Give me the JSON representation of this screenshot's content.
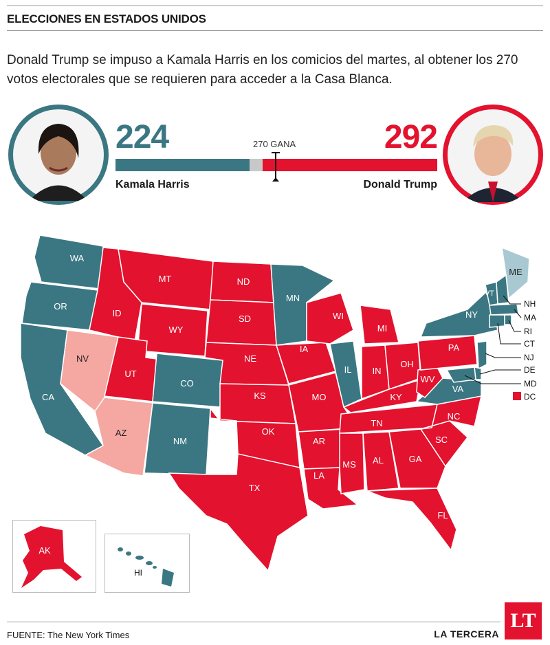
{
  "header": {
    "kicker": "ELECCIONES EN ESTADOS UNIDOS",
    "lede": "Donald Trump se impuso a Kamala Harris en los comicios del martes, al obtener los 270 votos electorales que se requieren para acceder a la Casa Blanca."
  },
  "scoreboard": {
    "harris_votes": "224",
    "trump_votes": "292",
    "harris_name": "Kamala Harris",
    "trump_name": "Donald Trump",
    "threshold_label": "270 GANA",
    "total": 538,
    "harris_value": 224,
    "trump_value": 292
  },
  "colors": {
    "democrat": "#3b7782",
    "republican": "#e3122e",
    "democrat_light": "#a9c9d2",
    "republican_light": "#f5a7a2",
    "undecided": "#c8c8c8"
  },
  "states": {
    "WA": "WA",
    "OR": "OR",
    "CA": "CA",
    "NV": "NV",
    "ID": "ID",
    "MT": "MT",
    "WY": "WY",
    "UT": "UT",
    "AZ": "AZ",
    "CO": "CO",
    "NM": "NM",
    "ND": "ND",
    "SD": "SD",
    "NE": "NE",
    "KS": "KS",
    "OK": "OK",
    "TX": "TX",
    "MN": "MN",
    "IA": "IA",
    "MO": "MO",
    "AR": "AR",
    "LA": "LA",
    "WI": "WI",
    "IL": "IL",
    "MI": "MI",
    "IN": "IN",
    "OH": "OH",
    "KY": "KY",
    "TN": "TN",
    "MS": "MS",
    "AL": "AL",
    "GA": "GA",
    "FL": "FL",
    "SC": "SC",
    "NC": "NC",
    "VA": "VA",
    "WV": "WV",
    "PA": "PA",
    "NY": "NY",
    "VT": "VT",
    "ME": "ME",
    "AK": "AK",
    "HI": "HI"
  },
  "callouts": {
    "NH": "NH",
    "MA": "MA",
    "RI": "RI",
    "CT": "CT",
    "NJ": "NJ",
    "DE": "DE",
    "MD": "MD",
    "DC": "DC"
  },
  "footer": {
    "source": "FUENTE: The New York Times",
    "brand": "LA TERCERA",
    "logo": "LT"
  }
}
